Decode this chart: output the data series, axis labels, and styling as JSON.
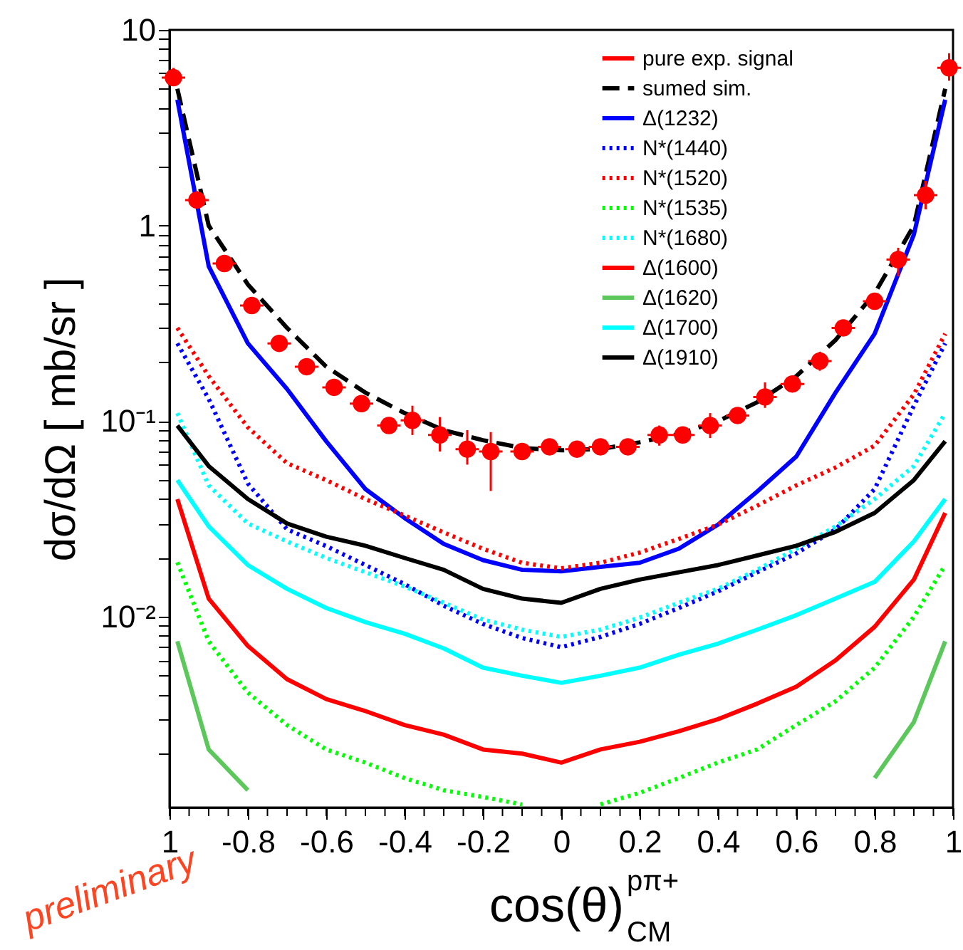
{
  "chart_data": {
    "type": "line",
    "xlabel": "cos(θ)$^{pπ+}$$_{CM}$",
    "ylabel": "dσ/dΩ [ mb/sr ]",
    "annotations": [
      "preliminary"
    ],
    "x": [
      -0.98,
      -0.9,
      -0.8,
      -0.7,
      -0.6,
      -0.5,
      -0.4,
      -0.3,
      -0.2,
      -0.1,
      0,
      0.1,
      0.2,
      0.3,
      0.4,
      0.5,
      0.6,
      0.7,
      0.8,
      0.9,
      0.98
    ],
    "series": [
      {
        "name": "pure exp. signal",
        "type": "scatter",
        "marker": "circle",
        "color": "#ff0000",
        "x": [
          -0.99,
          -0.93,
          -0.86,
          -0.79,
          -0.72,
          -0.65,
          -0.58,
          -0.51,
          -0.44,
          -0.38,
          -0.31,
          -0.24,
          -0.18,
          -0.1,
          -0.03,
          0.04,
          0.1,
          0.17,
          0.25,
          0.31,
          0.38,
          0.45,
          0.52,
          0.59,
          0.66,
          0.72,
          0.8,
          0.86,
          0.93,
          0.99
        ],
        "values": [
          5.7,
          1.35,
          0.64,
          0.39,
          0.25,
          0.19,
          0.149,
          0.123,
          0.095,
          0.101,
          0.085,
          0.072,
          0.07,
          0.07,
          0.074,
          0.072,
          0.074,
          0.074,
          0.085,
          0.085,
          0.095,
          0.107,
          0.133,
          0.155,
          0.203,
          0.3,
          0.41,
          0.67,
          1.43,
          6.4
        ],
        "errors": [
          [
            5.2,
            6.4
          ],
          [
            1.25,
            1.5
          ],
          null,
          null,
          null,
          null,
          null,
          null,
          null,
          [
            0.085,
            0.12
          ],
          [
            0.07,
            0.105
          ],
          [
            0.06,
            0.09
          ],
          [
            0.044,
            0.088
          ],
          null,
          null,
          null,
          null,
          null,
          [
            0.075,
            0.095
          ],
          null,
          [
            0.082,
            0.11
          ],
          null,
          [
            0.117,
            0.158
          ],
          null,
          [
            0.181,
            0.226
          ],
          null,
          null,
          [
            0.55,
            0.77
          ],
          [
            1.21,
            1.69
          ],
          [
            5.5,
            7.6
          ]
        ],
        "xerrors": [
          0.03,
          0.03,
          0.03,
          0.03,
          0.03,
          0.03,
          0.03,
          0.03,
          0.03,
          0.03,
          0.03,
          0.03,
          0.03,
          0.03,
          0.03,
          0.03,
          0.03,
          0.03,
          0.03,
          0.03,
          0.03,
          0.03,
          0.03,
          0.03,
          0.03,
          0.03,
          0.03,
          0.03,
          0.03,
          0.03
        ]
      },
      {
        "name": "sumed sim.",
        "color": "#000000",
        "line_style": "dashed",
        "values": [
          5.0,
          1.0,
          0.5,
          0.3,
          0.19,
          0.14,
          0.11,
          0.09,
          0.08,
          0.073,
          0.071,
          0.072,
          0.078,
          0.086,
          0.1,
          0.125,
          0.17,
          0.26,
          0.45,
          1.0,
          5.0
        ]
      },
      {
        "name": "Δ(1232)",
        "color": "#0000ff",
        "line_style": "solid",
        "values": [
          4.4,
          0.62,
          0.25,
          0.146,
          0.079,
          0.045,
          0.032,
          0.0236,
          0.0195,
          0.0174,
          0.0171,
          0.018,
          0.0189,
          0.0223,
          0.0296,
          0.0437,
          0.066,
          0.14,
          0.28,
          0.9,
          4.4
        ]
      },
      {
        "name": "N*(1440)",
        "color": "#0000ff",
        "line_style": "dotted",
        "values": [
          0.25,
          0.13,
          0.048,
          0.028,
          0.023,
          0.0184,
          0.0147,
          0.0114,
          0.0092,
          0.0078,
          0.007,
          0.0079,
          0.0092,
          0.0111,
          0.0135,
          0.0169,
          0.0211,
          0.028,
          0.045,
          0.12,
          0.25
        ]
      },
      {
        "name": "N*(1520)",
        "color": "#ff0000",
        "line_style": "dotted",
        "values": [
          0.3,
          0.17,
          0.093,
          0.061,
          0.05,
          0.04,
          0.033,
          0.027,
          0.0223,
          0.0189,
          0.0177,
          0.0189,
          0.0213,
          0.025,
          0.0296,
          0.037,
          0.047,
          0.058,
          0.075,
          0.137,
          0.28
        ]
      },
      {
        "name": "N*(1535)",
        "color": "#00ff00",
        "line_style": "dotted",
        "values": [
          0.019,
          0.0075,
          0.0041,
          0.0028,
          0.0021,
          0.0018,
          0.0015,
          0.0013,
          0.0012,
          0.0011,
          null,
          0.0011,
          0.00126,
          0.0015,
          0.0018,
          0.0021,
          0.0028,
          0.0037,
          0.0055,
          0.01,
          0.0184
        ]
      },
      {
        "name": "N*(1680)",
        "color": "#00ffff",
        "line_style": "dotted",
        "values": [
          0.11,
          0.047,
          0.03,
          0.0243,
          0.02,
          0.0169,
          0.0143,
          0.0118,
          0.0097,
          0.0086,
          0.0079,
          0.0086,
          0.0099,
          0.0118,
          0.0139,
          0.0174,
          0.0223,
          0.029,
          0.04,
          0.059,
          0.11
        ]
      },
      {
        "name": "Δ(1600)",
        "color": "#ff0000",
        "line_style": "solid",
        "values": [
          0.04,
          0.0124,
          0.0071,
          0.0048,
          0.0038,
          0.0033,
          0.0028,
          0.0025,
          0.0021,
          0.002,
          0.0018,
          0.0021,
          0.0023,
          0.0026,
          0.003,
          0.0036,
          0.0044,
          0.006,
          0.0089,
          0.0155,
          0.034
        ]
      },
      {
        "name": "Δ(1620)",
        "color": "#5cc85c",
        "line_style": "solid",
        "values": [
          0.0075,
          0.0021,
          0.0013,
          null,
          null,
          null,
          null,
          null,
          null,
          null,
          null,
          null,
          null,
          null,
          null,
          null,
          null,
          null,
          0.0015,
          0.0029,
          0.0075
        ]
      },
      {
        "name": "Δ(1700)",
        "color": "#00ffff",
        "line_style": "solid",
        "values": [
          0.05,
          0.029,
          0.0184,
          0.0139,
          0.0111,
          0.0094,
          0.0082,
          0.0069,
          0.0055,
          0.005,
          0.0046,
          0.005,
          0.0055,
          0.0064,
          0.0073,
          0.0086,
          0.0102,
          0.0124,
          0.0151,
          0.0243,
          0.04
        ]
      },
      {
        "name": "Δ(1910)",
        "color": "#000000",
        "line_style": "solid",
        "values": [
          0.095,
          0.059,
          0.04,
          0.03,
          0.0257,
          0.0231,
          0.02,
          0.0174,
          0.0139,
          0.0124,
          0.0118,
          0.0139,
          0.0155,
          0.0169,
          0.0184,
          0.0206,
          0.0231,
          0.0272,
          0.034,
          0.05,
          0.079
        ]
      }
    ],
    "xlim": [
      -1,
      1
    ],
    "xticks": [
      {
        "value": -1,
        "label": "1"
      },
      {
        "value": -0.95,
        "label": null
      },
      {
        "value": -0.9,
        "label": null
      },
      {
        "value": -0.85,
        "label": null
      },
      {
        "value": -0.8,
        "label": "-0.8"
      },
      {
        "value": -0.75,
        "label": null
      },
      {
        "value": -0.7,
        "label": null
      },
      {
        "value": -0.65,
        "label": null
      },
      {
        "value": -0.6,
        "label": "-0.6"
      },
      {
        "value": -0.55,
        "label": null
      },
      {
        "value": -0.5,
        "label": null
      },
      {
        "value": -0.45,
        "label": null
      },
      {
        "value": -0.4,
        "label": "-0.4"
      },
      {
        "value": -0.35,
        "label": null
      },
      {
        "value": -0.3,
        "label": null
      },
      {
        "value": -0.25,
        "label": null
      },
      {
        "value": -0.2,
        "label": "-0.2"
      },
      {
        "value": -0.15,
        "label": null
      },
      {
        "value": -0.1,
        "label": null
      },
      {
        "value": -0.05,
        "label": null
      },
      0,
      {
        "value": 0.05,
        "label": null
      },
      {
        "value": 0.1,
        "label": null
      },
      {
        "value": 0.15,
        "label": null
      },
      {
        "value": 0.2,
        "label": "0.2"
      },
      {
        "value": 0.25,
        "label": null
      },
      {
        "value": 0.3,
        "label": null
      },
      {
        "value": 0.35,
        "label": null
      },
      {
        "value": 0.4,
        "label": "0.4"
      },
      {
        "value": 0.45,
        "label": null
      },
      {
        "value": 0.5,
        "label": null
      },
      {
        "value": 0.55,
        "label": null
      },
      {
        "value": 0.6,
        "label": "0.6"
      },
      {
        "value": 0.65,
        "label": null
      },
      {
        "value": 0.7,
        "label": null
      },
      {
        "value": 0.75,
        "label": null
      },
      {
        "value": 0.8,
        "label": "0.8"
      },
      {
        "value": 0.85,
        "label": null
      },
      {
        "value": 0.9,
        "label": null
      },
      {
        "value": 0.95,
        "label": null
      },
      1
    ],
    "ylim": [
      0.00106,
      10
    ],
    "log": true,
    "yticks": [
      {
        "value": 0.002,
        "label": null
      },
      {
        "value": 0.003,
        "label": null
      },
      {
        "value": 0.004,
        "label": null
      },
      {
        "value": 0.005,
        "label": null
      },
      {
        "value": 0.006,
        "label": null
      },
      {
        "value": 0.007,
        "label": null
      },
      {
        "value": 0.008,
        "label": null
      },
      {
        "value": 0.009,
        "label": null
      },
      {
        "value": 0.01,
        "label": "10⁻²"
      },
      {
        "value": 0.02,
        "label": null
      },
      {
        "value": 0.03,
        "label": null
      },
      {
        "value": 0.04,
        "label": null
      },
      {
        "value": 0.05,
        "label": null
      },
      {
        "value": 0.06,
        "label": null
      },
      {
        "value": 0.07,
        "label": null
      },
      {
        "value": 0.08,
        "label": null
      },
      {
        "value": 0.09,
        "label": null
      },
      {
        "value": 0.1,
        "label": "10⁻¹"
      },
      {
        "value": 0.2,
        "label": null
      },
      {
        "value": 0.3,
        "label": null
      },
      {
        "value": 0.4,
        "label": null
      },
      {
        "value": 0.5,
        "label": null
      },
      {
        "value": 0.6,
        "label": null
      },
      {
        "value": 0.7,
        "label": null
      },
      {
        "value": 0.8,
        "label": null
      },
      {
        "value": 0.9,
        "label": null
      },
      1,
      {
        "value": 2,
        "label": null
      },
      {
        "value": 3,
        "label": null
      },
      {
        "value": 4,
        "label": null
      },
      {
        "value": 5,
        "label": null
      },
      {
        "value": 6,
        "label": null
      },
      {
        "value": 7,
        "label": null
      },
      {
        "value": 8,
        "label": null
      },
      {
        "value": 9,
        "label": null
      },
      10
    ],
    "grid": false,
    "legend": "top right"
  }
}
